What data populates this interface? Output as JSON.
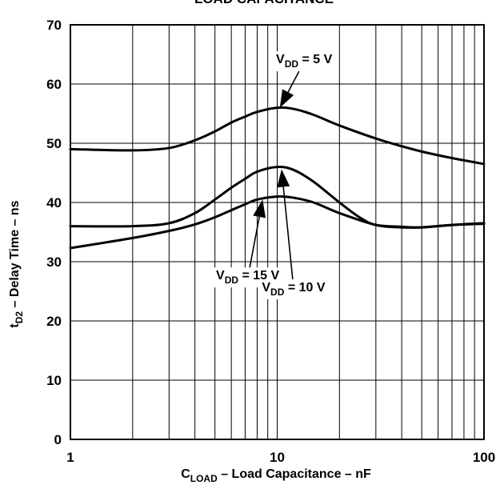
{
  "chart_data": {
    "type": "line",
    "title": "LOAD CAPACITANCE",
    "xlabel": {
      "main": "C",
      "sub": "LOAD",
      "rest": " – Load Capacitance – nF"
    },
    "ylabel": {
      "main": "t",
      "sub": "D2",
      "rest": " – Delay Time – ns"
    },
    "xscale": "log",
    "xlim": [
      1,
      100
    ],
    "ylim": [
      0,
      70
    ],
    "xticks": [
      1,
      10,
      100
    ],
    "xtick_labels": [
      "1",
      "10",
      "100"
    ],
    "yticks": [
      0,
      10,
      20,
      30,
      40,
      50,
      60,
      70
    ],
    "ytick_labels": [
      "0",
      "10",
      "20",
      "30",
      "40",
      "50",
      "60",
      "70"
    ],
    "grid": true,
    "series": [
      {
        "name": "VDD = 5 V",
        "label": {
          "main": "V",
          "sub": "DD",
          "rest": " = 5 V"
        },
        "x": [
          1,
          2,
          3,
          4,
          5,
          6,
          7,
          8,
          10,
          12,
          15,
          20,
          30,
          40,
          50,
          70,
          100
        ],
        "y": [
          49,
          48.8,
          49.2,
          50.5,
          52,
          53.5,
          54.5,
          55.3,
          56,
          55.8,
          54.8,
          53,
          50.8,
          49.5,
          48.6,
          47.5,
          46.5
        ]
      },
      {
        "name": "VDD = 10 V",
        "label": {
          "main": "V",
          "sub": "DD",
          "rest": " = 10 V"
        },
        "x": [
          1,
          2,
          3,
          4,
          5,
          6,
          7,
          8,
          10,
          12,
          15,
          20,
          25,
          30,
          40,
          50,
          70,
          100
        ],
        "y": [
          36,
          36,
          36.5,
          38.2,
          40.5,
          42.5,
          44,
          45.2,
          46,
          45.5,
          43.5,
          40,
          37.5,
          36.2,
          35.9,
          35.8,
          36.2,
          36.5
        ]
      },
      {
        "name": "VDD = 15 V",
        "label": {
          "main": "V",
          "sub": "DD",
          "rest": " = 15 V"
        },
        "x": [
          1,
          2,
          3,
          4,
          5,
          6,
          7,
          8,
          10,
          12,
          15,
          20,
          30,
          40,
          50,
          70,
          100
        ],
        "y": [
          32.3,
          34,
          35.2,
          36.3,
          37.5,
          38.7,
          39.7,
          40.5,
          41,
          40.8,
          40,
          38.2,
          36.2,
          35.8,
          35.8,
          36.2,
          36.4
        ]
      }
    ],
    "annotations": [
      {
        "series": "VDD = 5 V",
        "label_x": 13.5,
        "label_y": 63.5,
        "arrow_to_x": 10.3,
        "arrow_to_y": 56
      },
      {
        "series": "VDD = 15 V",
        "label_x": 7.2,
        "label_y": 27,
        "arrow_to_x": 8.5,
        "arrow_to_y": 40.5
      },
      {
        "series": "VDD = 10 V",
        "label_x": 12.0,
        "label_y": 25,
        "arrow_to_x": 10.5,
        "arrow_to_y": 45.6
      }
    ]
  }
}
